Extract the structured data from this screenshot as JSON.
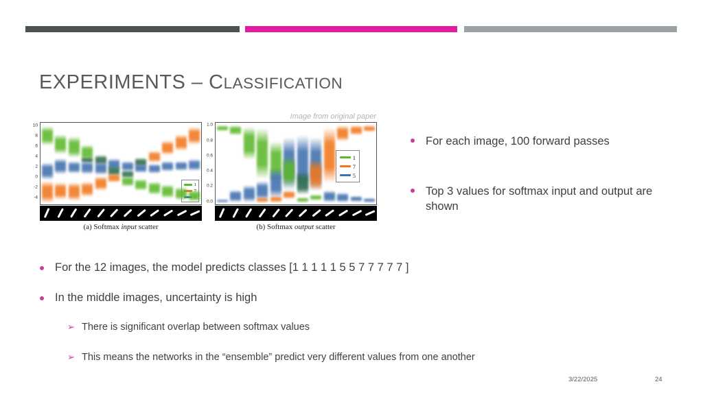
{
  "palette": {
    "g": "#5cb82b",
    "o": "#f1771d",
    "b": "#3f6fad",
    "d": "#2f6b49"
  },
  "accent_colors": {
    "bar_dark": "#4b5250",
    "bar_magenta": "#df1d9f",
    "bar_gray": "#9ba1a4",
    "bullet": "#c73a9e"
  },
  "title": {
    "main": "EXPERIMENTS – C",
    "small": "LASSIFICATION"
  },
  "figure_credit": "Image from original paper",
  "bullets_right": [
    "For each image, 100 forward passes",
    "Top 3 values for softmax input and output are shown"
  ],
  "bullets_main": [
    "For the 12 images, the model predicts classes [1 1 1 1 1 5 5 7 7 7 7 7 ]",
    "In the middle images, uncertainty is high"
  ],
  "bullets_sub": [
    "There is significant overlap between softmax values",
    "This means the networks in the “ensemble” predict very different values from one another"
  ],
  "sub_bullet_glyph": "➢",
  "footer": {
    "date": "3/22/2025",
    "page": "24"
  },
  "chart_data": [
    {
      "type": "scatter",
      "caption": {
        "pre": "(a) Softmax ",
        "it": "input",
        "post": " scatter"
      },
      "ylim": [
        -5.2,
        10.6
      ],
      "yticks": [
        {
          "label": "10",
          "v": 10
        },
        {
          "label": "8",
          "v": 8
        },
        {
          "label": "6",
          "v": 6
        },
        {
          "label": "4",
          "v": 4
        },
        {
          "label": "2",
          "v": 2
        },
        {
          "label": "0",
          "v": 0
        },
        {
          "label": "-2",
          "v": -2
        },
        {
          "label": "-4",
          "v": -4
        }
      ],
      "legend": [
        {
          "label": "1",
          "color": "#5cb82b"
        },
        {
          "label": "7",
          "color": "#f1771d"
        },
        {
          "label": "5",
          "color": "#3f6fad"
        }
      ],
      "x_images": "rotated digit one, 12 steps",
      "digit_rot": [
        24,
        66
      ],
      "columns": [
        [
          {
            "c": "g",
            "hi": 10.0,
            "lo": 6.2
          },
          {
            "c": "b",
            "hi": 2.9,
            "lo": -0.4
          },
          {
            "c": "o",
            "hi": -0.7,
            "lo": -4.9
          }
        ],
        [
          {
            "c": "g",
            "hi": 8.4,
            "lo": 4.5
          },
          {
            "c": "b",
            "hi": 3.7,
            "lo": 0.7
          },
          {
            "c": "o",
            "hi": -1.0,
            "lo": -4.3
          }
        ],
        [
          {
            "c": "g",
            "hi": 7.9,
            "lo": 3.8
          },
          {
            "c": "b",
            "hi": 3.1,
            "lo": 0.8
          },
          {
            "c": "o",
            "hi": -0.9,
            "lo": -4.6
          }
        ],
        [
          {
            "c": "g",
            "hi": 6.3,
            "lo": 3.3
          },
          {
            "c": "d",
            "hi": 4.0,
            "lo": 2.8
          },
          {
            "c": "b",
            "hi": 3.2,
            "lo": 0.7
          },
          {
            "c": "o",
            "hi": -0.8,
            "lo": -3.7
          }
        ],
        [
          {
            "c": "d",
            "hi": 4.4,
            "lo": 2.4
          },
          {
            "c": "b",
            "hi": 3.0,
            "lo": 0.5
          },
          {
            "c": "o",
            "hi": 0.3,
            "lo": -2.5
          }
        ],
        [
          {
            "c": "b",
            "hi": 3.7,
            "lo": 1.3
          },
          {
            "c": "d",
            "hi": 2.3,
            "lo": 0.2
          },
          {
            "c": "o",
            "hi": 0.8,
            "lo": -0.9
          }
        ],
        [
          {
            "c": "b",
            "hi": 3.2,
            "lo": 1.2
          },
          {
            "c": "d",
            "hi": 1.4,
            "lo": -0.2
          },
          {
            "c": "g",
            "hi": 0.2,
            "lo": -1.8
          }
        ],
        [
          {
            "c": "d",
            "hi": 3.8,
            "lo": 2.0
          },
          {
            "c": "b",
            "hi": 2.6,
            "lo": 0.9
          },
          {
            "c": "g",
            "hi": -0.3,
            "lo": -2.6
          }
        ],
        [
          {
            "c": "o",
            "hi": 5.2,
            "lo": 2.9
          },
          {
            "c": "b",
            "hi": 2.7,
            "lo": 0.8
          },
          {
            "c": "g",
            "hi": -0.8,
            "lo": -3.3
          }
        ],
        [
          {
            "c": "o",
            "hi": 7.2,
            "lo": 4.3
          },
          {
            "c": "b",
            "hi": 3.1,
            "lo": 1.2
          },
          {
            "c": "g",
            "hi": -1.4,
            "lo": -4.0
          }
        ],
        [
          {
            "c": "o",
            "hi": 8.3,
            "lo": 5.2
          },
          {
            "c": "b",
            "hi": 3.2,
            "lo": 1.3
          },
          {
            "c": "g",
            "hi": -1.9,
            "lo": -4.4
          }
        ],
        [
          {
            "c": "o",
            "hi": 9.8,
            "lo": 6.4
          },
          {
            "c": "b",
            "hi": 3.6,
            "lo": 1.3
          },
          {
            "c": "g",
            "hi": -2.4,
            "lo": -4.7
          }
        ]
      ]
    },
    {
      "type": "scatter",
      "caption": {
        "pre": "(b) Softmax ",
        "it": "output",
        "post": " scatter"
      },
      "ylim": [
        -0.03,
        1.04
      ],
      "yticks": [
        {
          "label": "1.0",
          "v": 1.0
        },
        {
          "label": "0.8",
          "v": 0.8
        },
        {
          "label": "0.6",
          "v": 0.6
        },
        {
          "label": "0.4",
          "v": 0.4
        },
        {
          "label": "0.2",
          "v": 0.2
        },
        {
          "label": "0.0",
          "v": 0.0
        }
      ],
      "legend": [
        {
          "label": "1",
          "color": "#5cb82b"
        },
        {
          "label": "7",
          "color": "#f1771d"
        },
        {
          "label": "5",
          "color": "#3f6fad"
        }
      ],
      "x_images": "rotated digit one, 12 steps",
      "digit_rot": [
        24,
        66
      ],
      "columns": [
        [
          {
            "c": "g",
            "hi": 1.0,
            "lo": 0.93
          },
          {
            "c": "b",
            "hi": 0.03,
            "lo": 0.0
          }
        ],
        [
          {
            "c": "g",
            "hi": 1.0,
            "lo": 0.88
          },
          {
            "c": "b",
            "hi": 0.16,
            "lo": 0.0
          }
        ],
        [
          {
            "c": "g",
            "hi": 0.99,
            "lo": 0.55
          },
          {
            "c": "b",
            "hi": 0.22,
            "lo": 0.0
          }
        ],
        [
          {
            "c": "g",
            "hi": 0.97,
            "lo": 0.3
          },
          {
            "c": "b",
            "hi": 0.28,
            "lo": 0.02
          },
          {
            "c": "o",
            "hi": 0.06,
            "lo": 0.0
          }
        ],
        [
          {
            "c": "g",
            "hi": 0.8,
            "lo": 0.25
          },
          {
            "c": "b",
            "hi": 0.45,
            "lo": 0.05
          },
          {
            "c": "o",
            "hi": 0.08,
            "lo": 0.0
          }
        ],
        [
          {
            "c": "b",
            "hi": 0.85,
            "lo": 0.15
          },
          {
            "c": "g",
            "hi": 0.6,
            "lo": 0.2
          },
          {
            "c": "o",
            "hi": 0.15,
            "lo": 0.04
          }
        ],
        [
          {
            "c": "b",
            "hi": 0.88,
            "lo": 0.12
          },
          {
            "c": "d",
            "hi": 0.4,
            "lo": 0.1
          },
          {
            "c": "g",
            "hi": 0.06,
            "lo": 0.0
          }
        ],
        [
          {
            "c": "b",
            "hi": 0.85,
            "lo": 0.15
          },
          {
            "c": "o",
            "hi": 0.55,
            "lo": 0.15
          },
          {
            "c": "g",
            "hi": 0.1,
            "lo": 0.02
          }
        ],
        [
          {
            "c": "o",
            "hi": 0.98,
            "lo": 0.25
          },
          {
            "c": "b",
            "hi": 0.15,
            "lo": 0.0
          }
        ],
        [
          {
            "c": "o",
            "hi": 1.0,
            "lo": 0.8
          },
          {
            "c": "b",
            "hi": 0.12,
            "lo": 0.0
          }
        ],
        [
          {
            "c": "o",
            "hi": 1.0,
            "lo": 0.88
          },
          {
            "c": "b",
            "hi": 0.08,
            "lo": 0.01
          }
        ],
        [
          {
            "c": "o",
            "hi": 1.0,
            "lo": 0.92
          },
          {
            "c": "b",
            "hi": 0.05,
            "lo": 0.0
          }
        ]
      ]
    }
  ]
}
